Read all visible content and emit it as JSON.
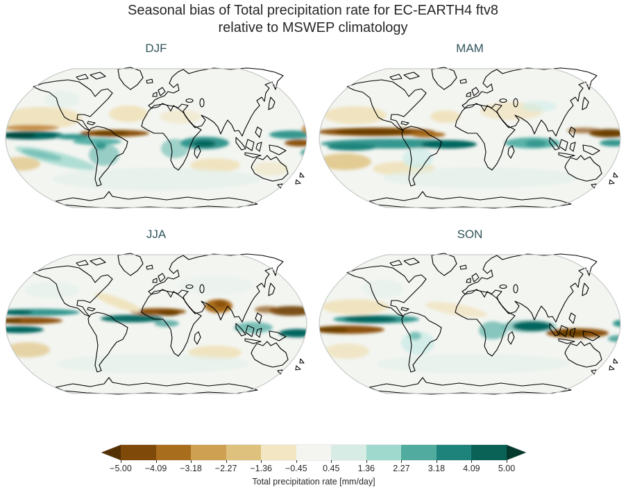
{
  "figure": {
    "title_line1": "Seasonal bias of Total precipitation rate for EC-EARTH4 ftv8",
    "title_line2": "relative to MSWEP climatology"
  },
  "panels": [
    {
      "label": "DJF"
    },
    {
      "label": "MAM"
    },
    {
      "label": "JJA"
    },
    {
      "label": "SON"
    }
  ],
  "chart_data": {
    "type": "heatmap",
    "subtype": "filled-contour global bias maps in a 2x2 seasonal grid",
    "projection": "Robinson",
    "variable": "Total precipitation rate bias",
    "units": "mm/day",
    "model": "EC-EARTH4 ftv8",
    "reference": "MSWEP climatology",
    "title": "Seasonal bias of Total precipitation rate for EC-EARTH4 ftv8 relative to MSWEP climatology",
    "panels": [
      "DJF",
      "MAM",
      "JJA",
      "SON"
    ],
    "visible_patterns": {
      "DJF": "Wet (teal) bias along the equatorial Pacific and Indian Ocean; dry (brown) band just north of the equator over the east Pacific and Atlantic; wet bias over Amazonia and the Congo; pale dry bias over subtropical oceans.",
      "MAM": "Strong dry (brown) band north of the equator across the Pacific and Atlantic with a strong wet (teal) band directly south of it (double-ITCZ bias); dry bias in the southern subtropics and far west Pacific.",
      "JJA": "Wet band north of the equator in the west/central Pacific with a dry band below it; dry bias over the Sahel, northern India and the northwest tropical Pacific; strong wet bias over the equatorial Atlantic.",
      "SON": "Wet (teal) band along the equatorial east Pacific and Indian Ocean; dry (brown) band to its southwest and from Indonesia to northern Australia; weak wet bias over Amazonia and southern mid-latitudes."
    },
    "colorbar": {
      "label": "Total precipitation rate [mm/day]",
      "orientation": "horizontal",
      "colormap": "BrBG (brown = dry bias, teal = wet bias)",
      "extend": "both",
      "range": [
        -5,
        5
      ],
      "tick_labels": [
        "−5.00",
        "−4.09",
        "−3.18",
        "−2.27",
        "−1.36",
        "−0.45",
        "0.45",
        "1.36",
        "2.27",
        "3.18",
        "4.09",
        "5.00"
      ],
      "tick_values": [
        -5.0,
        -4.09,
        -3.18,
        -2.27,
        -1.36,
        -0.45,
        0.45,
        1.36,
        2.27,
        3.18,
        4.09,
        5.0
      ],
      "segment_colors": [
        "#7f4a09",
        "#a96d1e",
        "#cda052",
        "#ddc17c",
        "#f2e6c3",
        "#f4f5f1",
        "#d6ece5",
        "#9fd8cd",
        "#52ab9f",
        "#1e837a",
        "#0a6156"
      ],
      "arrow_left_color": "#543005",
      "arrow_right_color": "#05392d"
    },
    "colors": {
      "background": "#ffffff",
      "title": "#262626",
      "panel_title": "#30535a",
      "tick_label": "#262626",
      "coastline": "#000000",
      "map_outline": "#c6c9c6",
      "map_background": "#f3f5f1"
    }
  }
}
